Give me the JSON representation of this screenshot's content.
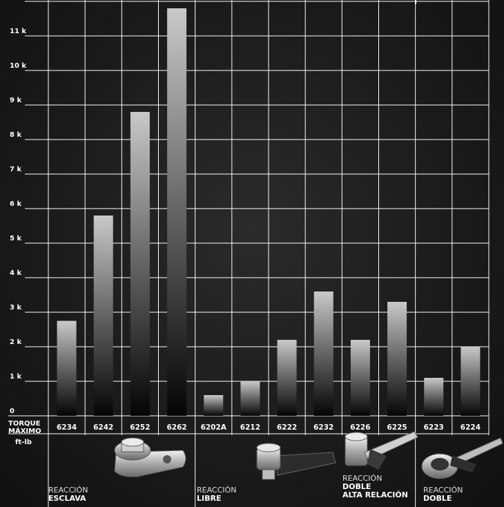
{
  "chart_data": {
    "type": "bar",
    "categories": [
      "6234",
      "6242",
      "6252",
      "6262",
      "6202A",
      "6212",
      "6222",
      "6232",
      "6226",
      "6225",
      "6223",
      "6224"
    ],
    "values": [
      2750,
      5800,
      8800,
      11800,
      600,
      1000,
      2200,
      3600,
      2200,
      3300,
      1100,
      2000
    ],
    "yticks": [
      "0",
      "1 k",
      "2 k",
      "3 k",
      "4 k",
      "5 k",
      "6 k",
      "7 k",
      "8 k",
      "9 k",
      "10 k",
      "11 k"
    ],
    "ylim": [
      0,
      12000
    ],
    "ylabel": [
      "TORQUE",
      "MÁXIMO",
      "ft-lb"
    ],
    "grid": true,
    "groups": [
      {
        "line1": "REACCIÓN",
        "line2": "ESCLAVA",
        "line3": "",
        "bars": [
          0,
          3
        ]
      },
      {
        "line1": "REACCIÓN",
        "line2": "LIBRE",
        "line3": "",
        "bars": [
          4,
          7
        ]
      },
      {
        "line1": "REACCIÓN",
        "line2": "DOBLE",
        "line3": "ALTA RELACIÓN",
        "bars": [
          8,
          9
        ]
      },
      {
        "line1": "REACCIÓN",
        "line2": "DOBLE",
        "line3": "",
        "bars": [
          10,
          11
        ]
      }
    ]
  },
  "colors": {
    "bar_top": "#c9c9c9",
    "bar_bottom": "#050505",
    "grid": "#ffffff"
  },
  "product_icons": [
    "slave-reaction-wrench-image",
    "free-reaction-wrench-image",
    "double-reaction-high-ratio-wrench-image",
    "double-reaction-wrench-image"
  ]
}
